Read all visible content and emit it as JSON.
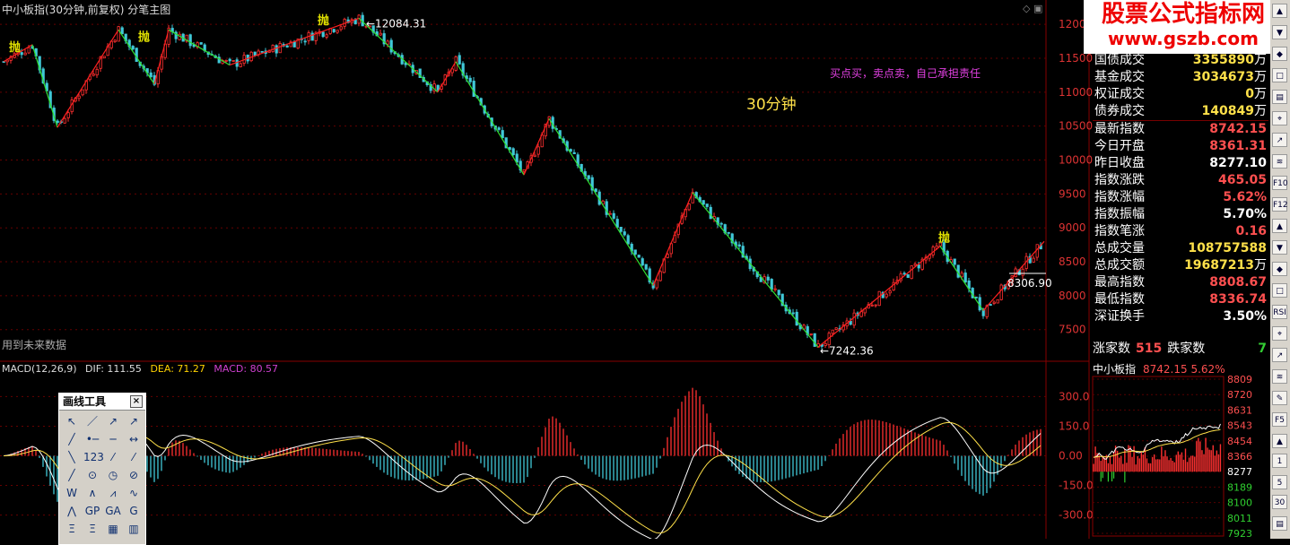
{
  "header": {
    "title": "中小板指(30分钟,前复权) 分笔主图",
    "future_note": "用到未来数据",
    "period_label": "30分钟",
    "disclaimer": "买点买，卖点卖，自己承担责任",
    "sell_mark": "抛"
  },
  "watermark": {
    "line1": "股票公式指标网",
    "line2": "www.gszb.com"
  },
  "macd_legend": {
    "name": "MACD(12,26,9)",
    "dif": "DIF: 111.55",
    "dea": "DEA: 71.27",
    "macd": "MACD: 80.57"
  },
  "stats": [
    {
      "label": "国债成交",
      "value": "3355890",
      "unit": "万",
      "color": "yellow"
    },
    {
      "label": "基金成交",
      "value": "3034673",
      "unit": "万",
      "color": "yellow"
    },
    {
      "label": "权证成交",
      "value": "0",
      "unit": "万",
      "color": "yellow"
    },
    {
      "label": "债券成交",
      "value": "140849",
      "unit": "万",
      "color": "yellow"
    },
    {
      "label": "最新指数",
      "value": "8742.15",
      "unit": "",
      "color": "red"
    },
    {
      "label": "今日开盘",
      "value": "8361.31",
      "unit": "",
      "color": "red"
    },
    {
      "label": "昨日收盘",
      "value": "8277.10",
      "unit": "",
      "color": "white"
    },
    {
      "label": "指数涨跌",
      "value": "465.05",
      "unit": "",
      "color": "red"
    },
    {
      "label": "指数涨幅",
      "value": "5.62%",
      "unit": "",
      "color": "red"
    },
    {
      "label": "指数振幅",
      "value": "5.70%",
      "unit": "",
      "color": "white"
    },
    {
      "label": "指数笔涨",
      "value": "0.16",
      "unit": "",
      "color": "red"
    },
    {
      "label": "总成交量",
      "value": "108757588",
      "unit": "",
      "color": "yellow"
    },
    {
      "label": "总成交额",
      "value": "19687213",
      "unit": "万",
      "color": "yellow"
    },
    {
      "label": "最高指数",
      "value": "8808.67",
      "unit": "",
      "color": "red"
    },
    {
      "label": "最低指数",
      "value": "8336.74",
      "unit": "",
      "color": "red"
    },
    {
      "label": "深证换手",
      "value": "3.50%",
      "unit": "",
      "color": "white"
    }
  ],
  "breadth": {
    "up_label": "涨家数",
    "up_value": "515",
    "down_label": "跌家数",
    "down_value": "7"
  },
  "mini_chart": {
    "name": "中小板指",
    "price": "8742.15",
    "pct": "5.62%",
    "ticks_upper": [
      "8809",
      "8720",
      "8631",
      "8543",
      "8454",
      "8366",
      "8277"
    ],
    "ticks_lower": [
      "8189",
      "8100",
      "8011",
      "7923"
    ]
  },
  "toolbar": {
    "labels": [
      "F10",
      "F12",
      "RSI",
      "F5",
      "1",
      "5",
      "30"
    ]
  },
  "draw_tools": {
    "title": "画线工具"
  },
  "chart_data": {
    "type": "candlestick",
    "title": "中小板指(30分钟,前复权) 分笔主图",
    "price_axis": {
      "ticks": [
        7500,
        8000,
        8500,
        9000,
        9500,
        10000,
        10500,
        11000,
        11500,
        12000
      ],
      "range": [
        7100,
        12200
      ]
    },
    "macd_axis": {
      "ticks": [
        "300.0",
        "150.0",
        "0.00",
        "-150.0",
        "-300.0"
      ],
      "range": [
        -420,
        420
      ]
    },
    "annotations": {
      "high": "12084.31",
      "low": "7242.36",
      "last": "8306.90"
    },
    "zigzag": [
      {
        "i": 0,
        "p": 11450
      },
      {
        "i": 8,
        "p": 11700
      },
      {
        "i": 15,
        "p": 10480
      },
      {
        "i": 32,
        "p": 11920
      },
      {
        "i": 42,
        "p": 11120
      },
      {
        "i": 46,
        "p": 11920
      },
      {
        "i": 63,
        "p": 11400
      },
      {
        "i": 99,
        "p": 12090
      },
      {
        "i": 121,
        "p": 11000
      },
      {
        "i": 126,
        "p": 11450
      },
      {
        "i": 145,
        "p": 9780
      },
      {
        "i": 152,
        "p": 10610
      },
      {
        "i": 181,
        "p": 8150
      },
      {
        "i": 192,
        "p": 9520
      },
      {
        "i": 227,
        "p": 7242
      },
      {
        "i": 261,
        "p": 8730
      },
      {
        "i": 273,
        "p": 7780
      },
      {
        "i": 290,
        "p": 8800
      }
    ],
    "sell_marks": [
      0,
      36,
      86,
      259
    ],
    "bars_count": 290
  }
}
